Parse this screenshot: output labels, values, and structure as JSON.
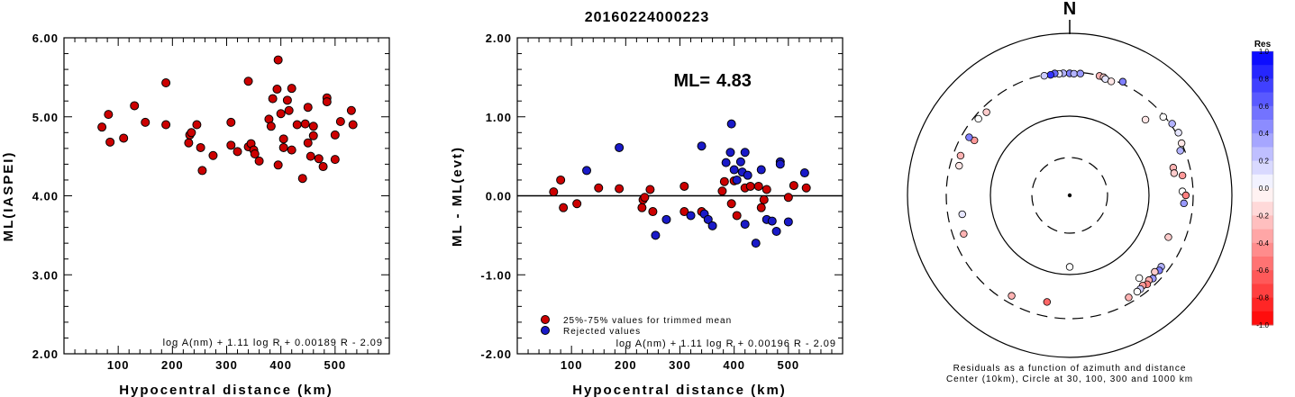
{
  "title": "20160224000223",
  "left_panel": {
    "ylabel": "ML(IASPEI)",
    "xlabel": "Hypocentral distance (km)",
    "formula": "log A(nm) + 1.11 log R + 0.00189 R - 2.09",
    "yticks": [
      "2.00",
      "3.00",
      "4.00",
      "5.00",
      "6.00"
    ],
    "xticks": [
      "100",
      "200",
      "300",
      "400",
      "500"
    ]
  },
  "middle_panel": {
    "ylabel": "ML - ML(evt)",
    "xlabel": "Hypocentral distance (km)",
    "ml_label": "ML=",
    "ml_value": "4.83",
    "formula": "log A(nm) + 1.11 log R + 0.00196 R - 2.09",
    "legend": [
      "25%-75% values for trimmed mean",
      "Rejected values"
    ],
    "yticks": [
      "-2.00",
      "-1.00",
      "0.00",
      "1.00",
      "2.00"
    ],
    "xticks": [
      "100",
      "200",
      "300",
      "400",
      "500"
    ]
  },
  "right_panel": {
    "north": "N",
    "caption1": "Residuals as a function of azimuth and distance",
    "caption2": "Center (10km), Circle at 30, 100, 300 and 1000 km",
    "colorbar_title": "Res",
    "colorbar_ticks": [
      "1.0",
      "0.8",
      "0.6",
      "0.4",
      "0.2",
      "0.0",
      "-0.2",
      "-0.4",
      "-0.6",
      "-0.8",
      "-1.0"
    ]
  },
  "colors": {
    "used": "#cc0000",
    "rejected": "#1a1ac8",
    "axis": "#000000"
  },
  "chart_data": [
    {
      "type": "scatter",
      "title": "20160224000223",
      "xlabel": "Hypocentral distance (km)",
      "ylabel": "ML(IASPEI)",
      "xlim": [
        0,
        600
      ],
      "ylim": [
        2.0,
        6.0
      ],
      "series": [
        {
          "points": [
            [
              70,
              4.87
            ],
            [
              82,
              5.03
            ],
            [
              85,
              4.68
            ],
            [
              110,
              4.73
            ],
            [
              130,
              5.14
            ],
            [
              150,
              4.93
            ],
            [
              188,
              5.43
            ],
            [
              188,
              4.9
            ],
            [
              230,
              4.67
            ],
            [
              232,
              4.77
            ],
            [
              235,
              4.8
            ],
            [
              245,
              4.9
            ],
            [
              252,
              4.61
            ],
            [
              255,
              4.32
            ],
            [
              275,
              4.51
            ],
            [
              308,
              4.93
            ],
            [
              308,
              4.64
            ],
            [
              320,
              4.56
            ],
            [
              340,
              5.45
            ],
            [
              340,
              4.62
            ],
            [
              345,
              4.66
            ],
            [
              350,
              4.58
            ],
            [
              352,
              4.53
            ],
            [
              360,
              4.44
            ],
            [
              378,
              4.97
            ],
            [
              382,
              4.88
            ],
            [
              385,
              5.23
            ],
            [
              393,
              5.35
            ],
            [
              395,
              5.72
            ],
            [
              395,
              4.39
            ],
            [
              400,
              5.04
            ],
            [
              405,
              4.61
            ],
            [
              405,
              4.72
            ],
            [
              412,
              5.21
            ],
            [
              415,
              5.08
            ],
            [
              420,
              4.58
            ],
            [
              420,
              5.36
            ],
            [
              430,
              4.9
            ],
            [
              440,
              4.22
            ],
            [
              445,
              4.91
            ],
            [
              450,
              4.67
            ],
            [
              450,
              5.12
            ],
            [
              455,
              4.5
            ],
            [
              460,
              4.88
            ],
            [
              460,
              4.76
            ],
            [
              470,
              4.47
            ],
            [
              478,
              4.37
            ],
            [
              485,
              5.24
            ],
            [
              485,
              5.19
            ],
            [
              500,
              4.46
            ],
            [
              500,
              4.77
            ],
            [
              510,
              4.94
            ],
            [
              530,
              5.08
            ],
            [
              533,
              4.9
            ]
          ]
        }
      ]
    },
    {
      "type": "scatter",
      "xlabel": "Hypocentral distance (km)",
      "ylabel": "ML - ML(evt)",
      "xlim": [
        0,
        600
      ],
      "ylim": [
        -2.0,
        2.0
      ],
      "series": [
        {
          "name": "25%-75% values for trimmed mean",
          "color": "#cc0000",
          "points": [
            [
              67,
              0.05
            ],
            [
              80,
              0.2
            ],
            [
              85,
              -0.15
            ],
            [
              110,
              -0.1
            ],
            [
              150,
              0.1
            ],
            [
              188,
              0.09
            ],
            [
              230,
              -0.15
            ],
            [
              232,
              -0.05
            ],
            [
              235,
              -0.02
            ],
            [
              245,
              0.08
            ],
            [
              250,
              -0.2
            ],
            [
              308,
              0.12
            ],
            [
              308,
              -0.2
            ],
            [
              340,
              -0.2
            ],
            [
              378,
              0.06
            ],
            [
              382,
              0.18
            ],
            [
              395,
              -0.1
            ],
            [
              400,
              0.19
            ],
            [
              405,
              -0.25
            ],
            [
              420,
              0.1
            ],
            [
              430,
              0.12
            ],
            [
              445,
              0.12
            ],
            [
              450,
              -0.15
            ],
            [
              455,
              -0.05
            ],
            [
              460,
              0.08
            ],
            [
              500,
              -0.02
            ],
            [
              510,
              0.13
            ],
            [
              533,
              0.1
            ]
          ]
        },
        {
          "name": "Rejected values",
          "color": "#1a1ac8",
          "points": [
            [
              128,
              0.32
            ],
            [
              188,
              0.61
            ],
            [
              255,
              -0.5
            ],
            [
              275,
              -0.3
            ],
            [
              320,
              -0.25
            ],
            [
              340,
              0.63
            ],
            [
              345,
              -0.23
            ],
            [
              352,
              -0.3
            ],
            [
              360,
              -0.38
            ],
            [
              385,
              0.42
            ],
            [
              393,
              0.55
            ],
            [
              395,
              0.91
            ],
            [
              400,
              0.33
            ],
            [
              405,
              0.2
            ],
            [
              412,
              0.43
            ],
            [
              415,
              0.3
            ],
            [
              420,
              0.55
            ],
            [
              420,
              -0.36
            ],
            [
              425,
              0.26
            ],
            [
              440,
              -0.6
            ],
            [
              450,
              0.33
            ],
            [
              460,
              -0.3
            ],
            [
              470,
              -0.32
            ],
            [
              478,
              -0.45
            ],
            [
              485,
              0.43
            ],
            [
              485,
              0.4
            ],
            [
              500,
              -0.33
            ],
            [
              530,
              0.29
            ]
          ]
        }
      ]
    },
    {
      "type": "polar-scatter",
      "caption": "Residuals as a function of azimuth and distance",
      "rings_km": [
        30,
        100,
        300,
        1000
      ],
      "colorbar_range": [
        -1.0,
        1.0
      ],
      "series": [
        {
          "points_azimuth_deg_distance_km_residual": [
            [
              0,
              290,
              0.5
            ],
            [
              -3,
              292,
              0.3
            ],
            [
              -5,
              290,
              0.1
            ],
            [
              -7,
              296,
              0.6
            ],
            [
              -9,
              290,
              0.8
            ],
            [
              2,
              288,
              0.3
            ],
            [
              5,
              292,
              0.4
            ],
            [
              -12,
              292,
              0.2
            ],
            [
              14,
              298,
              -0.3
            ],
            [
              16,
              296,
              -0.2
            ],
            [
              17,
              288,
              0.1
            ],
            [
              20,
              285,
              -0.1
            ],
            [
              25,
              320,
              0.5
            ],
            [
              45,
              200,
              -0.1
            ],
            [
              50,
              290,
              0.0
            ],
            [
              55,
              315,
              0.3
            ],
            [
              60,
              320,
              0.1
            ],
            [
              65,
              300,
              -0.1
            ],
            [
              68,
              270,
              0.3
            ],
            [
              75,
              200,
              -0.3
            ],
            [
              78,
              198,
              -0.2
            ],
            [
              80,
              240,
              -0.4
            ],
            [
              88,
              230,
              0.0
            ],
            [
              90,
              250,
              -0.5
            ],
            [
              94,
              240,
              0.4
            ],
            [
              113,
              200,
              -0.2
            ],
            [
              128,
              250,
              0.3
            ],
            [
              130,
              255,
              0.5
            ],
            [
              132,
              240,
              -0.2
            ],
            [
              135,
              260,
              0.4
            ],
            [
              137,
              250,
              -0.3
            ],
            [
              139,
              262,
              -0.5
            ],
            [
              141,
              250,
              -0.4
            ],
            [
              143,
              258,
              0.2
            ],
            [
              145,
              260,
              0.0
            ],
            [
              150,
              262,
              -0.3
            ],
            [
              140,
              205,
              0.0
            ],
            [
              180,
              80,
              0.0
            ],
            [
              192,
              210,
              -0.6
            ],
            [
              210,
              250,
              -0.3
            ],
            [
              250,
              230,
              -0.3
            ],
            [
              260,
              210,
              0.1
            ],
            [
              285,
              240,
              -0.1
            ],
            [
              290,
              250,
              -0.3
            ],
            [
              300,
              215,
              -0.4
            ],
            [
              300,
              250,
              0.5
            ],
            [
              310,
              270,
              0.0
            ],
            [
              315,
              260,
              -0.2
            ]
          ]
        }
      ]
    }
  ]
}
